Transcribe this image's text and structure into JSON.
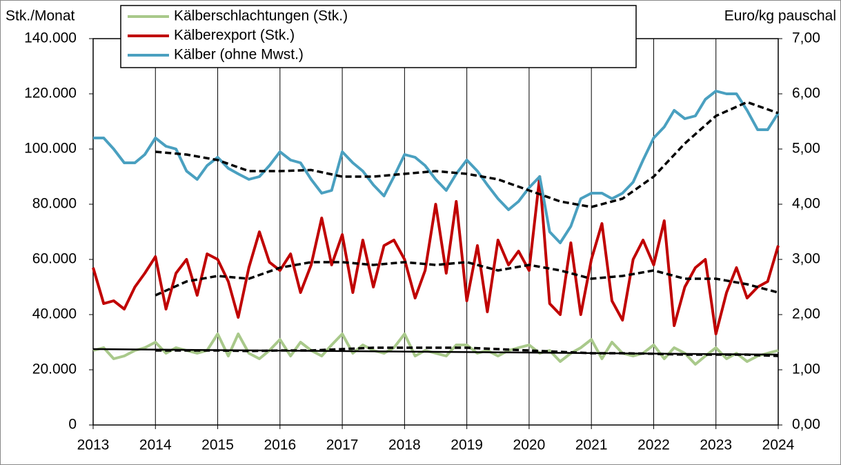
{
  "chart_data": {
    "type": "line",
    "ylabel": "Stk./Monat",
    "y2label": "Euro/kg pauschal",
    "x": [
      2013,
      2013.17,
      2013.33,
      2013.5,
      2013.67,
      2013.83,
      2014,
      2014.17,
      2014.33,
      2014.5,
      2014.67,
      2014.83,
      2015,
      2015.17,
      2015.33,
      2015.5,
      2015.67,
      2015.83,
      2016,
      2016.17,
      2016.33,
      2016.5,
      2016.67,
      2016.83,
      2017,
      2017.17,
      2017.33,
      2017.5,
      2017.67,
      2017.83,
      2018,
      2018.17,
      2018.33,
      2018.5,
      2018.67,
      2018.83,
      2019,
      2019.17,
      2019.33,
      2019.5,
      2019.67,
      2019.83,
      2020,
      2020.17,
      2020.33,
      2020.5,
      2020.67,
      2020.83,
      2021,
      2021.17,
      2021.33,
      2021.5,
      2021.67,
      2021.83,
      2022,
      2022.17,
      2022.33,
      2022.5,
      2022.67,
      2022.83,
      2023,
      2023.17,
      2023.33,
      2023.5,
      2023.67,
      2023.83,
      2024
    ],
    "xlim": [
      2013,
      2024
    ],
    "xticks": [
      2013,
      2014,
      2015,
      2016,
      2017,
      2018,
      2019,
      2020,
      2021,
      2022,
      2023,
      2024
    ],
    "ylim": [
      0,
      140000
    ],
    "yticks": [
      0,
      {
        "value": 20000,
        "label": "20.000"
      },
      {
        "value": 40000,
        "label": "40.000"
      },
      {
        "value": 60000,
        "label": "60.000"
      },
      {
        "value": 80000,
        "label": "80.000"
      },
      {
        "value": 100000,
        "label": "100.000"
      },
      {
        "value": 120000,
        "label": "120.000"
      },
      {
        "value": 140000,
        "label": "140.000"
      }
    ],
    "y2lim": [
      0,
      7
    ],
    "y2ticks": [
      {
        "value": 0,
        "label": "0,00"
      },
      {
        "value": 1,
        "label": "1,00"
      },
      {
        "value": 2,
        "label": "2,00"
      },
      {
        "value": 3,
        "label": "3,00"
      },
      {
        "value": 4,
        "label": "4,00"
      },
      {
        "value": 5,
        "label": "5,00"
      },
      {
        "value": 6,
        "label": "6,00"
      },
      {
        "value": 7,
        "label": "7,00"
      }
    ],
    "series": [
      {
        "name": "Kälberschlachtungen (Stk.)",
        "color": "#a9c98b",
        "values": [
          27000,
          28000,
          24000,
          25000,
          27000,
          28000,
          30000,
          26000,
          28000,
          27000,
          26000,
          27000,
          33000,
          25000,
          33000,
          26000,
          24000,
          27000,
          31000,
          25000,
          30000,
          27000,
          25000,
          29000,
          33000,
          26000,
          29000,
          27000,
          26000,
          28000,
          33000,
          25000,
          27000,
          26000,
          25000,
          29000,
          29000,
          26000,
          27000,
          25000,
          27000,
          28000,
          29000,
          26000,
          27000,
          23000,
          26000,
          28000,
          31000,
          24000,
          30000,
          26000,
          25000,
          26000,
          29000,
          24000,
          28000,
          26000,
          22000,
          25000,
          28000,
          24000,
          26000,
          23000,
          25000,
          26000,
          27000
        ]
      },
      {
        "name": "Kälberexport (Stk.)",
        "color": "#c00000",
        "values": [
          57000,
          44000,
          45000,
          42000,
          50000,
          55000,
          61000,
          42000,
          55000,
          60000,
          47000,
          62000,
          60000,
          52000,
          39000,
          57000,
          70000,
          59000,
          56000,
          62000,
          48000,
          58000,
          75000,
          58000,
          69000,
          48000,
          67000,
          50000,
          65000,
          67000,
          60000,
          46000,
          56000,
          80000,
          55000,
          81000,
          45000,
          65000,
          41000,
          67000,
          58000,
          63000,
          56000,
          90000,
          44000,
          40000,
          66000,
          40000,
          60000,
          73000,
          45000,
          38000,
          60000,
          67000,
          58000,
          74000,
          36000,
          50000,
          57000,
          60000,
          33000,
          48000,
          57000,
          46000,
          50000,
          52000,
          65000
        ]
      },
      {
        "name": "Kälber (ohne Mwst.)",
        "color": "#4aa0c0",
        "axis": "y2",
        "values": [
          5.2,
          5.2,
          5.0,
          4.75,
          4.75,
          4.9,
          5.2,
          5.05,
          5.0,
          4.6,
          4.45,
          4.7,
          4.85,
          4.65,
          4.55,
          4.45,
          4.5,
          4.7,
          4.95,
          4.8,
          4.75,
          4.45,
          4.2,
          4.25,
          4.95,
          4.75,
          4.6,
          4.35,
          4.15,
          4.5,
          4.9,
          4.85,
          4.7,
          4.45,
          4.25,
          4.55,
          4.8,
          4.6,
          4.35,
          4.1,
          3.9,
          4.05,
          4.3,
          4.5,
          3.5,
          3.3,
          3.6,
          4.1,
          4.2,
          4.2,
          4.1,
          4.2,
          4.4,
          4.8,
          5.2,
          5.4,
          5.7,
          5.55,
          5.6,
          5.9,
          6.05,
          6.0,
          6.0,
          5.7,
          5.35,
          5.35,
          5.65
        ]
      },
      {
        "color": "#000000",
        "dashed": true,
        "x": [
          2014,
          2014.5,
          2015,
          2015.5,
          2016,
          2016.5,
          2017,
          2017.5,
          2018,
          2018.5,
          2019,
          2019.5,
          2020,
          2020.5,
          2021,
          2021.5,
          2022,
          2022.5,
          2023,
          2023.5,
          2024
        ],
        "values": [
          27000,
          27000,
          27000,
          26800,
          27000,
          27000,
          27500,
          28000,
          28000,
          28000,
          28000,
          27500,
          27000,
          26500,
          26000,
          26000,
          25800,
          25500,
          25500,
          25500,
          25000
        ]
      },
      {
        "color": "#000000",
        "dashed": true,
        "x": [
          2014,
          2014.5,
          2015,
          2015.5,
          2016,
          2016.5,
          2017,
          2017.5,
          2018,
          2018.5,
          2019,
          2019.5,
          2020,
          2020.5,
          2021,
          2021.5,
          2022,
          2022.5,
          2023,
          2023.5,
          2024
        ],
        "values": [
          47000,
          52000,
          54000,
          53000,
          57000,
          59000,
          59000,
          58000,
          59000,
          58000,
          59000,
          56000,
          58000,
          56000,
          53000,
          54000,
          56000,
          53000,
          53000,
          51000,
          48000
        ]
      },
      {
        "color": "#000000",
        "dashed": true,
        "axis": "y2",
        "x": [
          2014,
          2014.5,
          2015,
          2015.5,
          2016,
          2016.5,
          2017,
          2017.5,
          2018,
          2018.5,
          2019,
          2019.5,
          2020,
          2020.5,
          2021,
          2021.5,
          2022,
          2022.5,
          2023,
          2023.5,
          2024
        ],
        "values": [
          4.95,
          4.9,
          4.8,
          4.6,
          4.6,
          4.62,
          4.5,
          4.5,
          4.55,
          4.6,
          4.55,
          4.45,
          4.25,
          4.05,
          3.95,
          4.1,
          4.5,
          5.1,
          5.6,
          5.85,
          5.65
        ]
      },
      {
        "color": "#000000",
        "x": [
          2013,
          2024
        ],
        "values": [
          27500,
          25500
        ]
      }
    ]
  }
}
